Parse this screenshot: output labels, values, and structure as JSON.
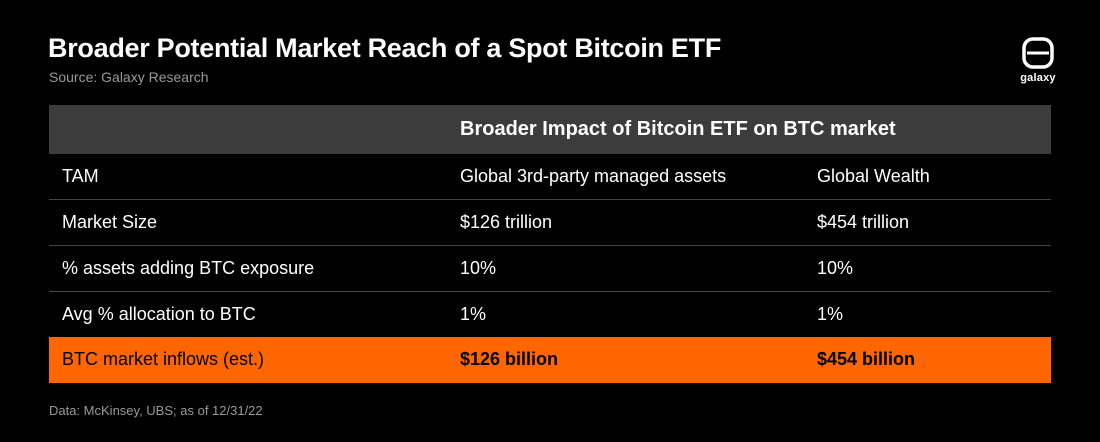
{
  "header": {
    "title": "Broader Potential Market Reach of a Spot Bitcoin ETF",
    "subtitle": "Source: Galaxy Research",
    "logo_text": "galaxy"
  },
  "colors": {
    "background": "#000000",
    "header_band": "#3c3c3c",
    "highlight": "#ff6600",
    "muted_text": "#9a9a9a"
  },
  "chart_data": {
    "type": "table",
    "title": "Broader Potential Market Reach of a Spot Bitcoin ETF",
    "column_header": "Broader Impact of Bitcoin ETF on BTC market",
    "rows": [
      {
        "label": "TAM",
        "col1": "Global 3rd-party managed assets",
        "col2": "Global Wealth"
      },
      {
        "label": "Market Size",
        "col1": "$126 trillion",
        "col2": "$454 trillion"
      },
      {
        "label": "% assets adding BTC exposure",
        "col1": "10%",
        "col2": "10%"
      },
      {
        "label": "Avg % allocation to BTC",
        "col1": "1%",
        "col2": "1%"
      }
    ],
    "highlight_row": {
      "label": "BTC market inflows (est.)",
      "col1": "$126 billion",
      "col2": "$454 billion"
    }
  },
  "footer": {
    "note": "Data: McKinsey, UBS; as of 12/31/22"
  }
}
